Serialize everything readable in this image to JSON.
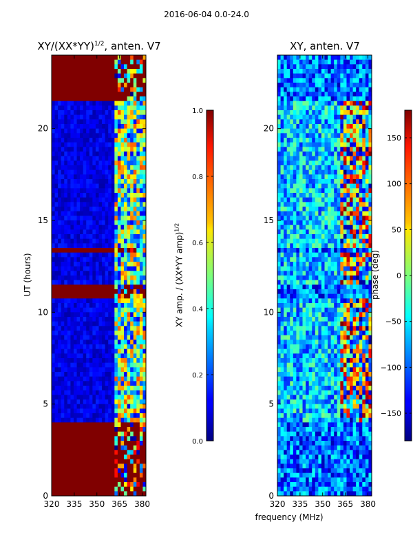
{
  "figure": {
    "suptitle": "2016-06-04 0.0-24.0"
  },
  "chart_data": [
    {
      "type": "heatmap",
      "title_base": "XY/(XX*YY)",
      "title_exponent": "1/2",
      "title_suffix": ", anten. V7",
      "xlabel": "",
      "ylabel": "UT (hours)",
      "xlim": [
        320,
        382.5
      ],
      "ylim": [
        0,
        24
      ],
      "xticks": [
        320,
        335,
        350,
        365,
        380
      ],
      "yticks": [
        0,
        5,
        10,
        15,
        20
      ],
      "colorbar": {
        "label_base": "XY amp. / (XX*YY amp)",
        "label_exponent": "1/2",
        "range": [
          0.0,
          1.0
        ],
        "ticks": [
          "0.0",
          "0.2",
          "0.4",
          "0.6",
          "0.8",
          "1.0"
        ],
        "tick_values": [
          0.0,
          0.2,
          0.4,
          0.6,
          0.8,
          1.0
        ],
        "colormap": "jet"
      }
    },
    {
      "type": "heatmap",
      "title": "XY, anten. V7",
      "xlabel": "frequency (MHz)",
      "ylabel": "",
      "xlim": [
        320,
        382.5
      ],
      "ylim": [
        0,
        24
      ],
      "xticks": [
        320,
        335,
        350,
        365,
        380
      ],
      "yticks": [
        0,
        5,
        10,
        15,
        20
      ],
      "colorbar": {
        "label": "phase (deg)",
        "range": [
          -180,
          180
        ],
        "ticks": [
          "−150",
          "−100",
          "−50",
          "0",
          "50",
          "100",
          "150"
        ],
        "tick_values": [
          -150,
          -100,
          -50,
          0,
          50,
          100,
          150
        ],
        "colormap": "jet"
      }
    }
  ]
}
